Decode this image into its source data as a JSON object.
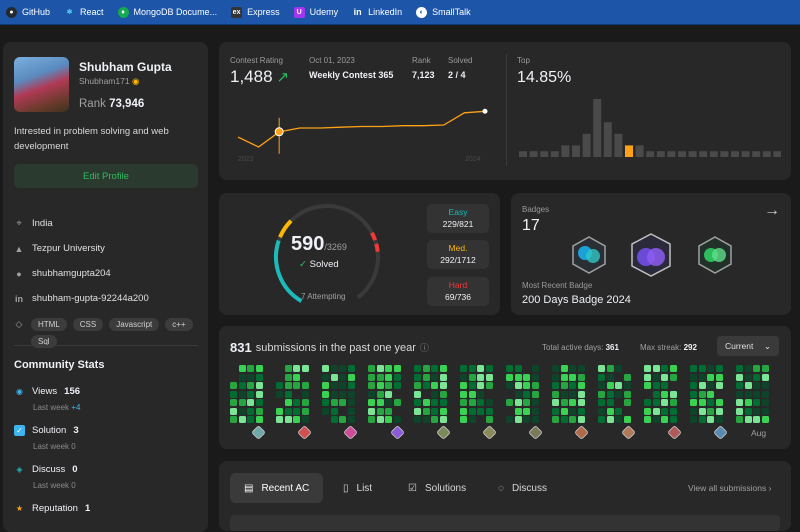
{
  "bookmarks": [
    {
      "label": "GitHub",
      "icon": "github-icon",
      "color": "#24292e"
    },
    {
      "label": "React",
      "icon": "react-icon",
      "color": "#1d56a8"
    },
    {
      "label": "MongoDB Docume...",
      "icon": "mongodb-icon",
      "color": "#13aa52"
    },
    {
      "label": "Express",
      "icon": "express-icon",
      "color": "#333333"
    },
    {
      "label": "Udemy",
      "icon": "udemy-icon",
      "color": "#a435f0"
    },
    {
      "label": "LinkedIn",
      "icon": "linkedin-icon",
      "color": "#1d56a8"
    },
    {
      "label": "SmallTalk",
      "icon": "smalltalk-icon",
      "color": "#1d56a8"
    }
  ],
  "profile": {
    "name": "Shubham Gupta",
    "username": "Shubham171",
    "rank_label": "Rank",
    "rank_value": "73,946",
    "bio": "Intrested in problem solving and web development",
    "edit_label": "Edit Profile",
    "location": "India",
    "university": "Tezpur University",
    "github": "shubhamgupta204",
    "linkedin": "shubham-gupta-92244a200",
    "skills": [
      "HTML",
      "CSS",
      "Javascript",
      "c++",
      "Sql"
    ]
  },
  "community": {
    "title": "Community Stats",
    "views": {
      "label": "Views",
      "value": "156",
      "sub": "Last week",
      "delta": "+4"
    },
    "solution": {
      "label": "Solution",
      "value": "3",
      "sub": "Last week",
      "delta": "0"
    },
    "discuss": {
      "label": "Discuss",
      "value": "0",
      "sub": "Last week",
      "delta": "0"
    },
    "reputation": {
      "label": "Reputation",
      "value": "1"
    }
  },
  "contest": {
    "rating_label": "Contest Rating",
    "rating": "1,488",
    "date": "Oct 01, 2023",
    "contest_name": "Weekly Contest 365",
    "rank_label": "Rank",
    "rank": "7,123",
    "solved_label": "Solved",
    "solved": "2 / 4",
    "year_start": "2023",
    "year_end": "2024",
    "top_label": "Top",
    "top_value": "14.85%",
    "rating_points": [
      0.62,
      0.75,
      0.55,
      0.5,
      0.5,
      0.49,
      0.48,
      0.48,
      0.47,
      0.47,
      0.46,
      0.3,
      0.28
    ],
    "histogram": [
      1,
      1,
      1,
      1,
      2,
      2,
      4,
      10,
      6,
      4,
      2,
      2,
      1,
      1,
      1,
      1,
      1,
      1,
      1,
      1,
      1,
      1,
      1,
      1,
      1
    ],
    "histogram_highlight_index": 10
  },
  "solved": {
    "count": "590",
    "total": "/3269",
    "label": "Solved",
    "attempting": "7 Attempting",
    "easy": {
      "label": "Easy",
      "value": "229/821",
      "color": "#1cbaba"
    },
    "medium": {
      "label": "Med.",
      "value": "292/1712",
      "color": "#ffb700"
    },
    "hard": {
      "label": "Hard",
      "value": "69/736",
      "color": "#f63737"
    }
  },
  "badges": {
    "label": "Badges",
    "count": "17",
    "recent_label": "Most Recent Badge",
    "recent_name": "200 Days Badge 2024"
  },
  "heatmap": {
    "count": "831",
    "title": "submissions in the past one year",
    "active_label": "Total active days:",
    "active_value": "361",
    "streak_label": "Max streak:",
    "streak_value": "292",
    "dropdown": "Current",
    "last_month": "Aug"
  },
  "recent": {
    "tabs": [
      "Recent AC",
      "List",
      "Solutions",
      "Discuss"
    ],
    "view_all": "View all submissions"
  }
}
